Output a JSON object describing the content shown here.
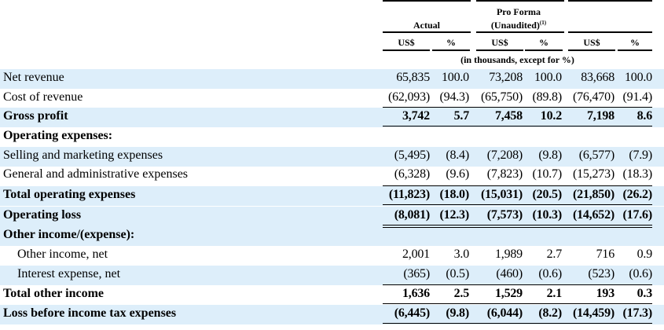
{
  "header": {
    "actual": "Actual",
    "pro_forma": "Pro Forma",
    "unaudited": "(Unaudited)",
    "footnote": "(1)",
    "col_labels": [
      "US$",
      "%",
      "US$",
      "%",
      "US$",
      "%"
    ],
    "units": "(in thousands, except for %)"
  },
  "rows": [
    {
      "label": "Net revenue",
      "values": [
        "65,835",
        "100.0",
        "73,208",
        "100.0",
        "83,668",
        "100.0"
      ]
    },
    {
      "label": "Cost of revenue",
      "values": [
        "(62,093)",
        "(94.3)",
        "(65,750)",
        "(89.8)",
        "(76,470)",
        "(91.4)"
      ]
    },
    {
      "label": "Gross profit",
      "values": [
        "3,742",
        "5.7",
        "7,458",
        "10.2",
        "7,198",
        "8.6"
      ]
    },
    {
      "label": "Operating expenses:",
      "values": []
    },
    {
      "label": "Selling and marketing expenses",
      "values": [
        "(5,495)",
        "(8.4)",
        "(7,208)",
        "(9.8)",
        "(6,577)",
        "(7.9)"
      ]
    },
    {
      "label": "General and administrative expenses",
      "values": [
        "(6,328)",
        "(9.6)",
        "(7,823)",
        "(10.7)",
        "(15,273)",
        "(18.3)"
      ]
    },
    {
      "label": "Total operating expenses",
      "values": [
        "(11,823)",
        "(18.0)",
        "(15,031)",
        "(20.5)",
        "(21,850)",
        "(26.2)"
      ]
    },
    {
      "label": "Operating loss",
      "values": [
        "(8,081)",
        "(12.3)",
        "(7,573)",
        "(10.3)",
        "(14,652)",
        "(17.6)"
      ]
    },
    {
      "label": "Other income/(expense):",
      "values": []
    },
    {
      "label": "Other income, net",
      "values": [
        "2,001",
        "3.0",
        "1,989",
        "2.7",
        "716",
        "0.9"
      ]
    },
    {
      "label": "Interest expense, net",
      "values": [
        "(365)",
        "(0.5)",
        "(460)",
        "(0.6)",
        "(523)",
        "(0.6)"
      ]
    },
    {
      "label": "Total other income",
      "values": [
        "1,636",
        "2.5",
        "1,529",
        "2.1",
        "193",
        "0.3"
      ]
    },
    {
      "label": "Loss before income tax expenses",
      "values": [
        "(6,445)",
        "(9.8)",
        "(6,044)",
        "(8.2)",
        "(14,459)",
        "(17.3)"
      ]
    }
  ]
}
